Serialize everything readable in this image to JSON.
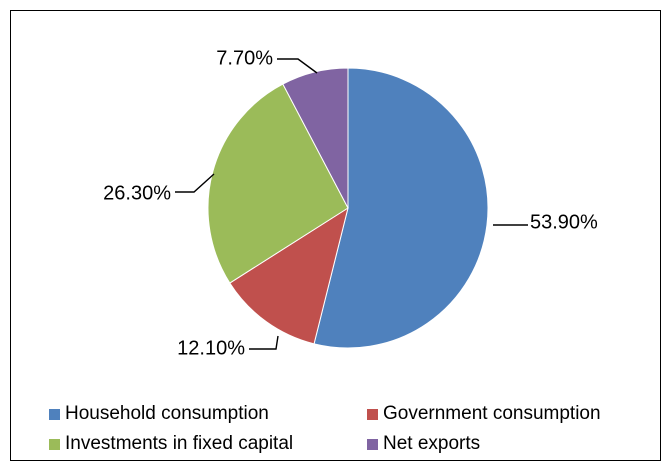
{
  "chart_data": {
    "type": "pie",
    "title": "",
    "slices": [
      {
        "name": "Household consumption",
        "value": 53.9,
        "label": "53.90%",
        "color": "#4f81bd"
      },
      {
        "name": "Government consumption",
        "value": 12.1,
        "label": "12.10%",
        "color": "#c0504d"
      },
      {
        "name": "Investments in fixed capital",
        "value": 26.3,
        "label": "26.30%",
        "color": "#9bbb59"
      },
      {
        "name": "Net exports",
        "value": 7.7,
        "label": "7.70%",
        "color": "#8064a2"
      }
    ],
    "start_angle_deg": 0,
    "direction": "clockwise",
    "legend_position": "bottom"
  }
}
